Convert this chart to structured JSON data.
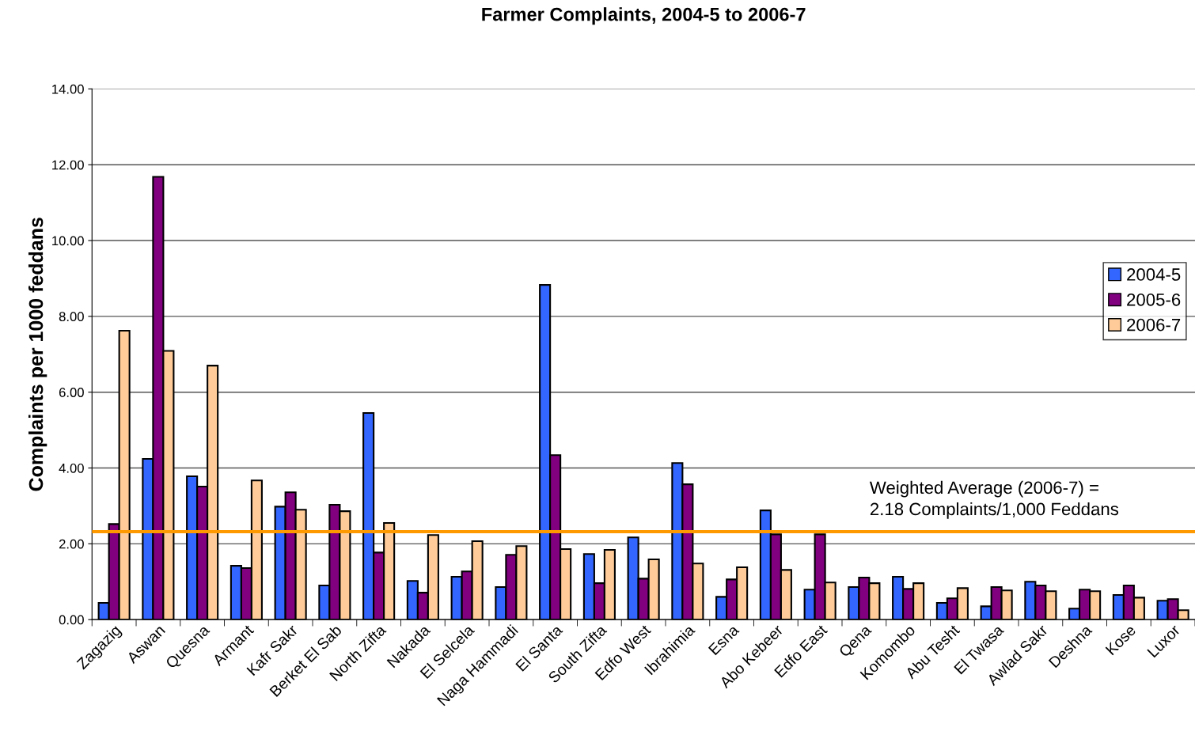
{
  "chart_data": {
    "type": "bar",
    "title": "Farmer Complaints, 2004-5 to 2006-7",
    "ylabel": "Complaints per 1000 feddans",
    "categories": [
      "Zagazig",
      "Aswan",
      "Quesna",
      "Armant",
      "Kafr Sakr",
      "Berket El Sab",
      "North Zifta",
      "Nakada",
      "El Selcela",
      "Naga Hammadi",
      "El Santa",
      "South Zifta",
      "Edfo West",
      "Ibrahimia",
      "Esna",
      "Abo Kebeer",
      "Edfo East",
      "Qena",
      "Komombo",
      "Abu Tesht",
      "El Twasa",
      "Awlad Sakr",
      "Deshna",
      "Kose",
      "Luxor"
    ],
    "series": [
      {
        "name": "2004-5",
        "color": "#3366ff",
        "values": [
          0.44,
          4.24,
          3.78,
          1.42,
          2.98,
          0.9,
          5.45,
          1.02,
          1.13,
          0.86,
          8.83,
          1.73,
          2.17,
          4.13,
          0.6,
          2.88,
          0.79,
          0.86,
          1.13,
          0.44,
          0.35,
          1.0,
          0.29,
          0.65,
          0.5
        ]
      },
      {
        "name": "2005-6",
        "color": "#800080",
        "values": [
          2.52,
          11.68,
          3.51,
          1.36,
          3.36,
          3.03,
          1.77,
          0.71,
          1.27,
          1.71,
          4.34,
          0.96,
          1.08,
          3.57,
          1.06,
          2.25,
          2.25,
          1.11,
          0.81,
          0.56,
          0.86,
          0.9,
          0.79,
          0.9,
          0.54
        ]
      },
      {
        "name": "2006-7",
        "color": "#ffcc99",
        "values": [
          7.62,
          7.09,
          6.7,
          3.67,
          2.9,
          2.86,
          2.55,
          2.23,
          2.07,
          1.94,
          1.86,
          1.84,
          1.59,
          1.48,
          1.38,
          1.31,
          0.98,
          0.96,
          0.96,
          0.83,
          0.77,
          0.75,
          0.75,
          0.58,
          0.25
        ]
      }
    ],
    "ylim": [
      0,
      14
    ],
    "yticks": [
      {
        "value": 0,
        "label": "0.00"
      },
      {
        "value": 2,
        "label": "2.00"
      },
      {
        "value": 4,
        "label": "4.00"
      },
      {
        "value": 6,
        "label": "6.00"
      },
      {
        "value": 8,
        "label": "8.00"
      },
      {
        "value": 10,
        "label": "10.00"
      },
      {
        "value": 12,
        "label": "12.00"
      },
      {
        "value": 14,
        "label": "14.00"
      }
    ],
    "ref_lines": [
      {
        "axis": "y",
        "value": 2.32,
        "color": "#ff9900",
        "line_style": "solid"
      }
    ],
    "annotations": [
      "Weighted Average (2006-7) =\n2.18 Complaints/1,000 Feddans"
    ],
    "grid": "y",
    "legend": "right"
  }
}
